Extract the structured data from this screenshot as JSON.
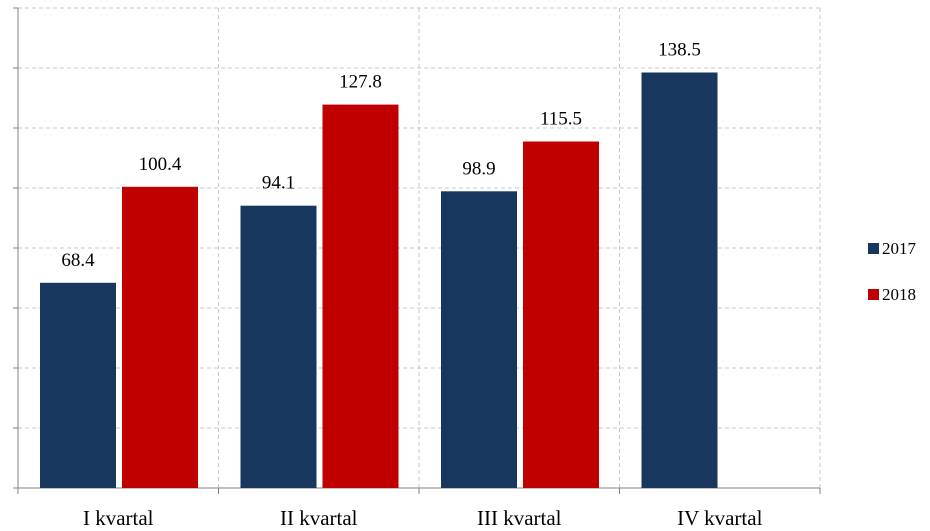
{
  "chart_data": {
    "type": "bar",
    "categories": [
      "I kvartal",
      "II kvartal",
      "III kvartal",
      "IV kvartal"
    ],
    "series": [
      {
        "name": "2017",
        "color": "#17375e",
        "values": [
          68.4,
          94.1,
          98.9,
          138.5
        ]
      },
      {
        "name": "2018",
        "color": "#c00000",
        "values": [
          100.4,
          127.8,
          115.5,
          null
        ]
      }
    ],
    "ylim": [
      0,
      160
    ],
    "yticks": [
      0,
      20,
      40,
      60,
      80,
      100,
      120,
      140,
      160
    ],
    "y_tick_labels_visible": false,
    "grid": true,
    "legend_position": "right",
    "data_labels": true
  }
}
